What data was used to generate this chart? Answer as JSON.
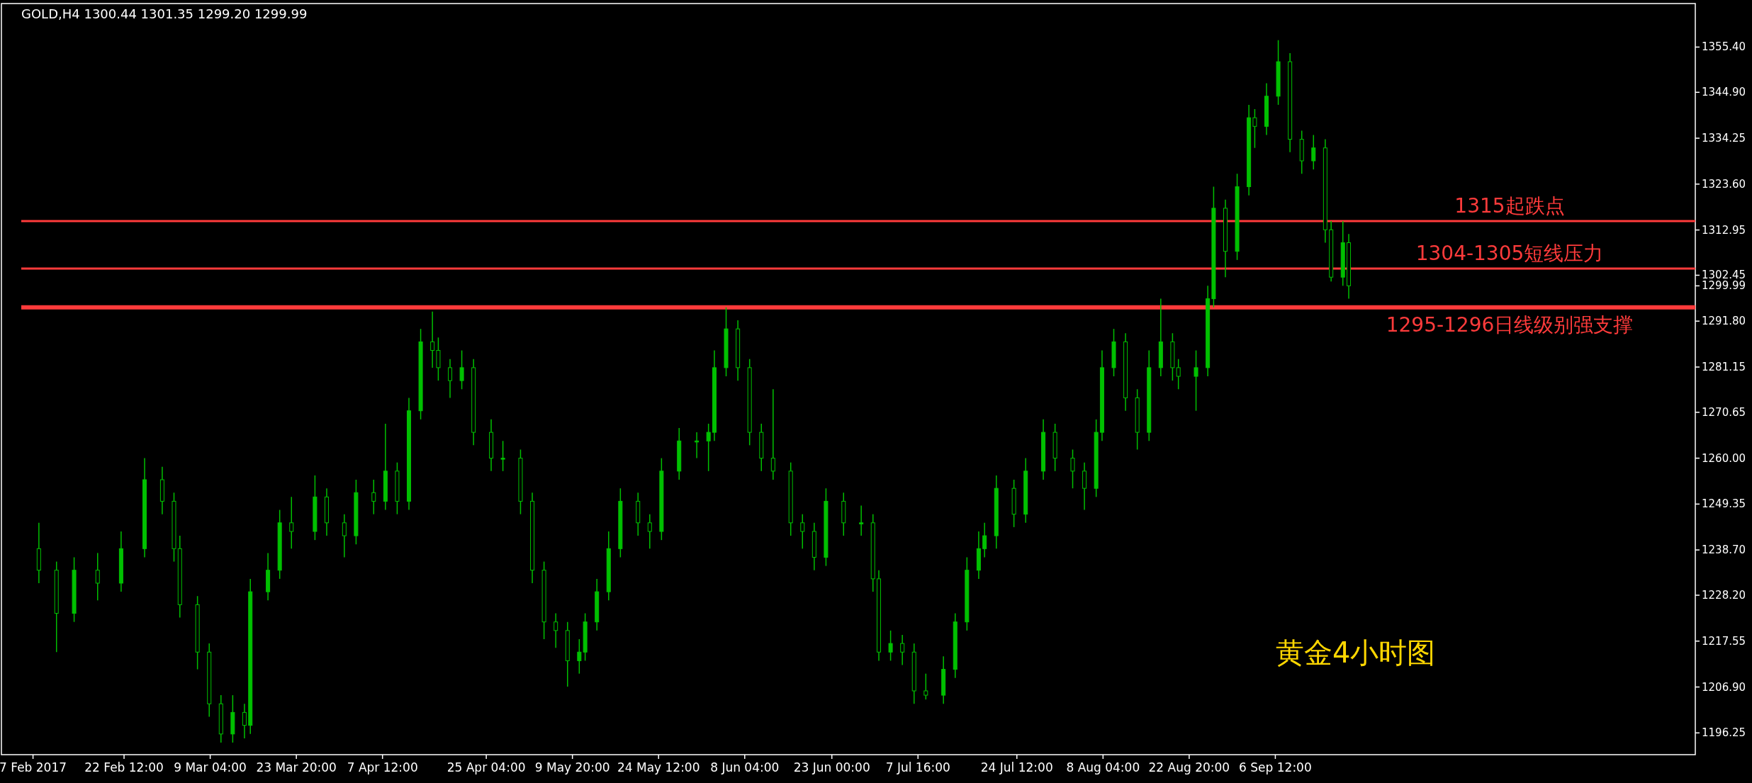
{
  "chart_data": {
    "type": "candlestick",
    "title": "GOLD,H4 1300.44 1301.35 1299.20 1299.99",
    "color": "#00c000",
    "x": [
      "2017-02-08",
      "2017-02-11",
      "2017-02-14",
      "2017-02-18",
      "2017-02-22",
      "2017-02-26",
      "2017-03-01",
      "2017-03-03",
      "2017-03-04",
      "2017-03-07",
      "2017-03-09",
      "2017-03-11",
      "2017-03-13",
      "2017-03-15",
      "2017-03-16",
      "2017-03-19",
      "2017-03-21",
      "2017-03-23",
      "2017-03-27",
      "2017-03-29",
      "2017-04-01",
      "2017-04-03",
      "2017-04-06",
      "2017-04-08",
      "2017-04-10",
      "2017-04-12",
      "2017-04-14",
      "2017-04-16",
      "2017-04-17",
      "2017-04-19",
      "2017-04-21",
      "2017-04-23",
      "2017-04-26",
      "2017-04-28",
      "2017-05-01",
      "2017-05-03",
      "2017-05-05",
      "2017-05-07",
      "2017-05-09",
      "2017-05-11",
      "2017-05-12",
      "2017-05-14",
      "2017-05-16",
      "2017-05-18",
      "2017-05-21",
      "2017-05-23",
      "2017-05-25",
      "2017-05-28",
      "2017-05-31",
      "2017-06-02",
      "2017-06-03",
      "2017-06-05",
      "2017-06-07",
      "2017-06-09",
      "2017-06-11",
      "2017-06-13",
      "2017-06-16",
      "2017-06-18",
      "2017-06-20",
      "2017-06-22",
      "2017-06-25",
      "2017-06-28",
      "2017-06-30",
      "2017-07-01",
      "2017-07-03",
      "2017-07-05",
      "2017-07-07",
      "2017-07-09",
      "2017-07-12",
      "2017-07-14",
      "2017-07-16",
      "2017-07-18",
      "2017-07-19",
      "2017-07-21",
      "2017-07-24",
      "2017-07-26",
      "2017-07-29",
      "2017-07-31",
      "2017-08-03",
      "2017-08-05",
      "2017-08-07",
      "2017-08-08",
      "2017-08-10",
      "2017-08-12",
      "2017-08-14",
      "2017-08-16",
      "2017-08-18",
      "2017-08-20",
      "2017-08-21",
      "2017-08-24",
      "2017-08-26",
      "2017-08-27",
      "2017-08-29",
      "2017-08-31",
      "2017-09-02",
      "2017-09-03",
      "2017-09-05",
      "2017-09-07",
      "2017-09-09",
      "2017-09-11",
      "2017-09-13",
      "2017-09-15",
      "2017-09-16",
      "2017-09-18",
      "2017-09-19"
    ],
    "ohlc": [
      [
        1239,
        1245,
        1231,
        1234
      ],
      [
        1234,
        1236,
        1215,
        1224
      ],
      [
        1224,
        1237,
        1222,
        1234
      ],
      [
        1234,
        1238,
        1227,
        1231
      ],
      [
        1231,
        1243,
        1229,
        1239
      ],
      [
        1239,
        1260,
        1237,
        1255
      ],
      [
        1255,
        1258,
        1247,
        1250
      ],
      [
        1250,
        1252,
        1236,
        1239
      ],
      [
        1239,
        1242,
        1223,
        1226
      ],
      [
        1226,
        1228,
        1211,
        1215
      ],
      [
        1215,
        1217,
        1200,
        1203
      ],
      [
        1203,
        1205,
        1194,
        1196
      ],
      [
        1196,
        1205,
        1194,
        1201
      ],
      [
        1201,
        1203,
        1195,
        1198
      ],
      [
        1198,
        1232,
        1196,
        1229
      ],
      [
        1229,
        1238,
        1227,
        1234
      ],
      [
        1234,
        1248,
        1232,
        1245
      ],
      [
        1245,
        1251,
        1239,
        1243
      ],
      [
        1243,
        1256,
        1241,
        1251
      ],
      [
        1251,
        1253,
        1242,
        1245
      ],
      [
        1245,
        1247,
        1237,
        1242
      ],
      [
        1242,
        1255,
        1240,
        1252
      ],
      [
        1252,
        1255,
        1247,
        1250
      ],
      [
        1250,
        1268,
        1248,
        1257
      ],
      [
        1257,
        1259,
        1247,
        1250
      ],
      [
        1250,
        1274,
        1248,
        1271
      ],
      [
        1271,
        1290,
        1269,
        1287
      ],
      [
        1287,
        1294,
        1281,
        1285
      ],
      [
        1285,
        1288,
        1278,
        1281
      ],
      [
        1281,
        1283,
        1274,
        1278
      ],
      [
        1278,
        1285,
        1276,
        1281
      ],
      [
        1281,
        1283,
        1263,
        1266
      ],
      [
        1266,
        1269,
        1257,
        1260
      ],
      [
        1260,
        1264,
        1257,
        1260
      ],
      [
        1260,
        1262,
        1247,
        1250
      ],
      [
        1250,
        1252,
        1231,
        1234
      ],
      [
        1234,
        1236,
        1218,
        1222
      ],
      [
        1222,
        1224,
        1216,
        1220
      ],
      [
        1220,
        1222,
        1207,
        1213
      ],
      [
        1213,
        1218,
        1210,
        1215
      ],
      [
        1215,
        1224,
        1213,
        1222
      ],
      [
        1222,
        1232,
        1220,
        1229
      ],
      [
        1229,
        1243,
        1227,
        1239
      ],
      [
        1239,
        1253,
        1237,
        1250
      ],
      [
        1250,
        1252,
        1242,
        1245
      ],
      [
        1245,
        1247,
        1239,
        1243
      ],
      [
        1243,
        1260,
        1241,
        1257
      ],
      [
        1257,
        1267,
        1255,
        1264
      ],
      [
        1264,
        1266,
        1260,
        1264
      ],
      [
        1264,
        1268,
        1257,
        1266
      ],
      [
        1266,
        1285,
        1264,
        1281
      ],
      [
        1281,
        1295,
        1279,
        1290
      ],
      [
        1290,
        1292,
        1278,
        1281
      ],
      [
        1281,
        1283,
        1263,
        1266
      ],
      [
        1266,
        1268,
        1257,
        1260
      ],
      [
        1260,
        1276,
        1255,
        1257
      ],
      [
        1257,
        1259,
        1242,
        1245
      ],
      [
        1245,
        1247,
        1239,
        1243
      ],
      [
        1243,
        1245,
        1234,
        1237
      ],
      [
        1237,
        1253,
        1235,
        1250
      ],
      [
        1250,
        1252,
        1242,
        1245
      ],
      [
        1245,
        1249,
        1242,
        1245
      ],
      [
        1245,
        1247,
        1229,
        1232
      ],
      [
        1232,
        1234,
        1213,
        1215
      ],
      [
        1215,
        1220,
        1213,
        1217
      ],
      [
        1217,
        1219,
        1212,
        1215
      ],
      [
        1215,
        1217,
        1203,
        1206
      ],
      [
        1206,
        1210,
        1204,
        1205
      ],
      [
        1205,
        1214,
        1203,
        1211
      ],
      [
        1211,
        1224,
        1209,
        1222
      ],
      [
        1222,
        1237,
        1220,
        1234
      ],
      [
        1234,
        1243,
        1232,
        1239
      ],
      [
        1239,
        1245,
        1237,
        1242
      ],
      [
        1242,
        1256,
        1239,
        1253
      ],
      [
        1253,
        1255,
        1244,
        1247
      ],
      [
        1247,
        1260,
        1245,
        1257
      ],
      [
        1257,
        1269,
        1255,
        1266
      ],
      [
        1266,
        1268,
        1257,
        1260
      ],
      [
        1260,
        1262,
        1253,
        1257
      ],
      [
        1257,
        1259,
        1248,
        1253
      ],
      [
        1253,
        1269,
        1251,
        1266
      ],
      [
        1266,
        1285,
        1264,
        1281
      ],
      [
        1281,
        1290,
        1279,
        1287
      ],
      [
        1287,
        1289,
        1271,
        1274
      ],
      [
        1274,
        1276,
        1262,
        1266
      ],
      [
        1266,
        1285,
        1264,
        1281
      ],
      [
        1281,
        1297,
        1279,
        1287
      ],
      [
        1287,
        1289,
        1278,
        1281
      ],
      [
        1281,
        1283,
        1276,
        1279
      ],
      [
        1279,
        1285,
        1271,
        1281
      ],
      [
        1281,
        1300,
        1279,
        1297
      ],
      [
        1297,
        1323,
        1295,
        1318
      ],
      [
        1318,
        1320,
        1302,
        1308
      ],
      [
        1308,
        1326,
        1306,
        1323
      ],
      [
        1323,
        1342,
        1321,
        1339
      ],
      [
        1339,
        1341,
        1332,
        1337
      ],
      [
        1337,
        1347,
        1335,
        1344
      ],
      [
        1344,
        1357,
        1342,
        1352
      ],
      [
        1352,
        1354,
        1331,
        1334
      ],
      [
        1334,
        1336,
        1326,
        1329
      ],
      [
        1329,
        1335,
        1327,
        1332
      ],
      [
        1332,
        1334,
        1310,
        1313
      ],
      [
        1313,
        1315,
        1301,
        1302
      ],
      [
        1302,
        1315,
        1300,
        1310
      ],
      [
        1310,
        1312,
        1297,
        1300
      ]
    ],
    "xlim": [
      "2017-02-05",
      "2017-11-17"
    ],
    "xticks": [
      {
        "value": "2017-02-07",
        "label": "7 Feb 2017"
      },
      {
        "value": "2017-02-22T12:00",
        "label": "22 Feb 12:00"
      },
      {
        "value": "2017-03-09T04:00",
        "label": "9 Mar 04:00"
      },
      {
        "value": "2017-03-23T20:00",
        "label": "23 Mar 20:00"
      },
      {
        "value": "2017-04-07T12:00",
        "label": "7 Apr 12:00"
      },
      {
        "value": "2017-04-25T04:00",
        "label": "25 Apr 04:00"
      },
      {
        "value": "2017-05-09T20:00",
        "label": "9 May 20:00"
      },
      {
        "value": "2017-05-24T12:00",
        "label": "24 May 12:00"
      },
      {
        "value": "2017-06-08T04:00",
        "label": "8 Jun 04:00"
      },
      {
        "value": "2017-06-23T00:00",
        "label": "23 Jun 00:00"
      },
      {
        "value": "2017-07-07T16:00",
        "label": "7 Jul 16:00"
      },
      {
        "value": "2017-07-24T12:00",
        "label": "24 Jul 12:00"
      },
      {
        "value": "2017-08-08T04:00",
        "label": "8 Aug 04:00"
      },
      {
        "value": "2017-08-22T20:00",
        "label": "22 Aug 20:00"
      },
      {
        "value": "2017-09-06T12:00",
        "label": "6 Sep 12:00"
      }
    ],
    "ylim": [
      1191.2,
      1365.5
    ],
    "yticks": [
      {
        "value": 1355.4,
        "label": "1355.40"
      },
      {
        "value": 1344.9,
        "label": "1344.90"
      },
      {
        "value": 1334.25,
        "label": "1334.25"
      },
      {
        "value": 1323.6,
        "label": "1323.60"
      },
      {
        "value": 1312.95,
        "label": "1312.95"
      },
      {
        "value": 1302.45,
        "label": "1302.45"
      },
      {
        "value": 1299.99,
        "label": "1299.99"
      },
      {
        "value": 1291.8,
        "label": "1291.80"
      },
      {
        "value": 1281.15,
        "label": "1281.15"
      },
      {
        "value": 1270.65,
        "label": "1270.65"
      },
      {
        "value": 1260,
        "label": "1260.00"
      },
      {
        "value": 1249.35,
        "label": "1249.35"
      },
      {
        "value": 1238.7,
        "label": "1238.70"
      },
      {
        "value": 1228.2,
        "label": "1228.20"
      },
      {
        "value": 1217.55,
        "label": "1217.55"
      },
      {
        "value": 1206.9,
        "label": "1206.90"
      },
      {
        "value": 1196.25,
        "label": "1196.25"
      }
    ],
    "ref_lines": [
      {
        "axis": "y",
        "value": 1315,
        "label": "1315起跌点",
        "color": "#ff3b3b"
      },
      {
        "axis": "y",
        "value": 1304,
        "label": "1304-1305短线压力",
        "color": "#ff3b3b"
      },
      {
        "axis": "y",
        "value": 1295,
        "label": "1295-1296日线级别强支撑",
        "color": "#ff3b3b"
      }
    ],
    "annotations": [
      "黄金4小时图"
    ],
    "grid": false
  }
}
